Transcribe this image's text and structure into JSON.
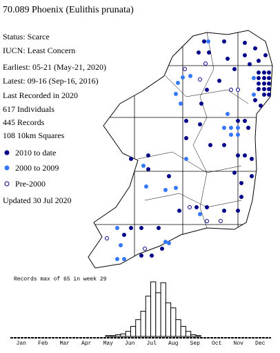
{
  "header": {
    "title": "70.089 Phoenix (Eulithis prunata)"
  },
  "info": [
    "Status: Scarce",
    "IUCN: Least Concern",
    "Earliest: 05-21 (May-21, 2020)",
    "Latest: 09-16 (Sep-16, 2016)",
    "Last Recorded in 2020",
    "617 Individuals",
    "445 Records",
    "108 10km Squares"
  ],
  "legend": [
    "2010 to date",
    "2000 to 2009",
    "Pre-2000"
  ],
  "updated": "Updated 30 Jul 2020",
  "chart_data": {
    "type": "bar",
    "title": "Records max of 65 in week 29",
    "values": [
      0,
      0,
      0,
      0,
      0,
      0,
      0,
      0,
      0,
      0,
      0,
      0,
      0,
      0,
      0,
      0,
      0,
      0,
      0,
      1,
      1,
      2,
      3,
      6,
      12,
      20,
      30,
      48,
      65,
      52,
      64,
      40,
      34,
      20,
      12,
      6,
      2,
      1,
      0,
      0,
      0,
      0,
      0,
      0,
      0,
      0,
      0,
      0,
      0,
      0,
      0,
      0
    ],
    "xticks": [
      "Jan",
      "Feb",
      "Mar",
      "Apr",
      "May",
      "Jun",
      "Jul",
      "Aug",
      "Sep",
      "Oct",
      "Nov",
      "Dec"
    ],
    "ylim": [
      0,
      65
    ],
    "color": "#ffffff"
  }
}
